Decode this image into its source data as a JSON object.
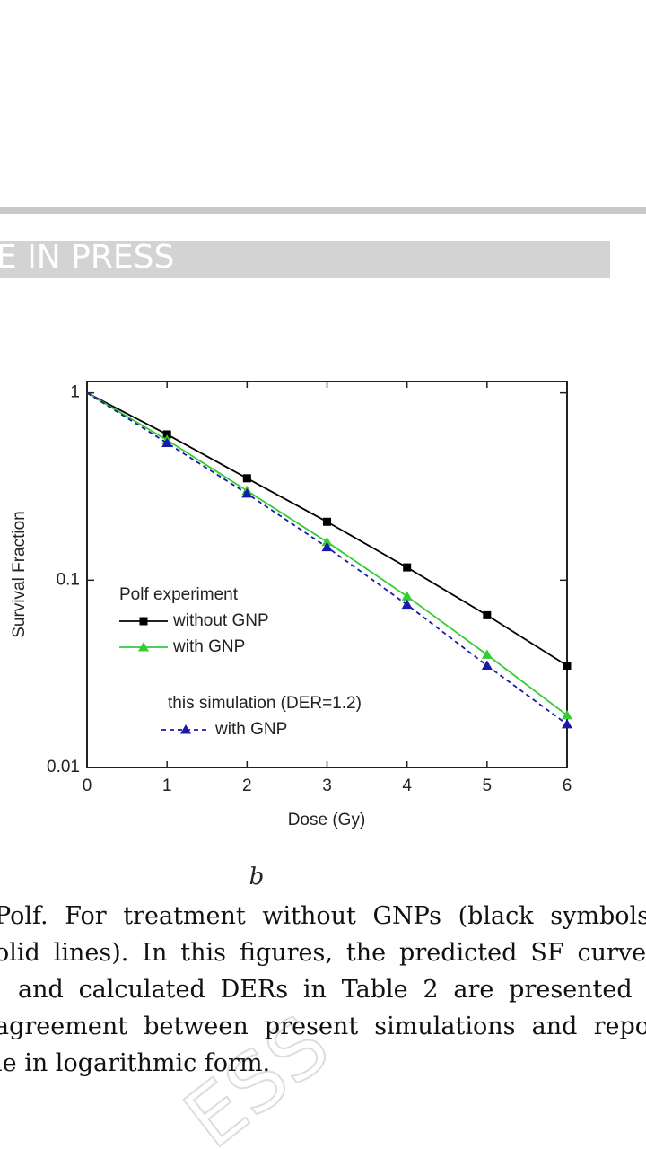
{
  "banner": "E IN PRESS",
  "chart_data": {
    "type": "line",
    "x_label": "Dose (Gy)",
    "y_label": "Survival Fraction",
    "x": [
      0,
      1,
      2,
      3,
      4,
      5,
      6
    ],
    "xlim": [
      0,
      6
    ],
    "xticks": [
      0,
      1,
      2,
      3,
      4,
      5,
      6
    ],
    "ylim": [
      0.01,
      1.15
    ],
    "yticks": [
      0.01,
      0.1,
      1
    ],
    "log_y": true,
    "legend_groups": [
      "Polf  experiment",
      "this simulation (DER=1.2)"
    ],
    "series": [
      {
        "name": "without GNP",
        "color": "#000000",
        "marker": "square",
        "dashed": false,
        "group": 0,
        "values": [
          1,
          0.6,
          0.35,
          0.205,
          0.117,
          0.065,
          0.035
        ]
      },
      {
        "name": "with GNP",
        "color": "#33cc33",
        "marker": "triangle",
        "dashed": false,
        "group": 0,
        "values": [
          1,
          0.56,
          0.3,
          0.16,
          0.082,
          0.04,
          0.019
        ]
      },
      {
        "name": "with GNP",
        "color": "#1a1aa8",
        "marker": "triangle",
        "dashed": true,
        "group": 1,
        "values": [
          1,
          0.54,
          0.29,
          0.15,
          0.074,
          0.035,
          0.017
        ]
      }
    ]
  },
  "caption_label": "b",
  "paragraph_lines": [
    "Polf. For treatment without GNPs (black symbols",
    "olid lines). In this figures, the predicted SF curves",
    "and calculated DERs in Table 2 are presented (",
    "agreement between present simulations and repo",
    "le in logarithmic form."
  ],
  "watermark": "ESS"
}
